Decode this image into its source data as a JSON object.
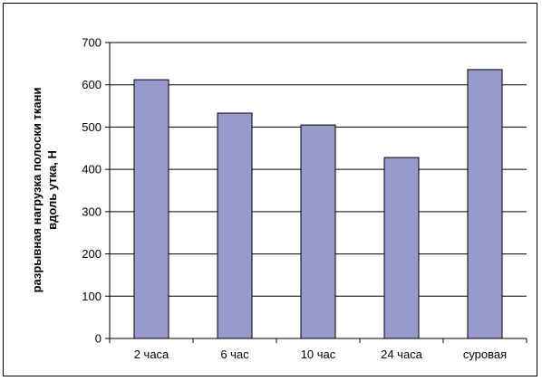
{
  "chart_data": {
    "type": "bar",
    "categories": [
      "2 часа",
      "6 час",
      "10 час",
      "24 часа",
      "суровая"
    ],
    "values": [
      612,
      533,
      505,
      428,
      636
    ],
    "title": "",
    "xlabel": "",
    "ylabel_lines": [
      "разрывная нагрузка полоски ткани",
      "вдоль утка, Н"
    ],
    "ylim": [
      0,
      700
    ],
    "yticks": [
      0,
      100,
      200,
      300,
      400,
      500,
      600,
      700
    ],
    "grid": true,
    "legend": "none",
    "bar_color": "#9999cc",
    "bar_edge_color": "#000000"
  }
}
